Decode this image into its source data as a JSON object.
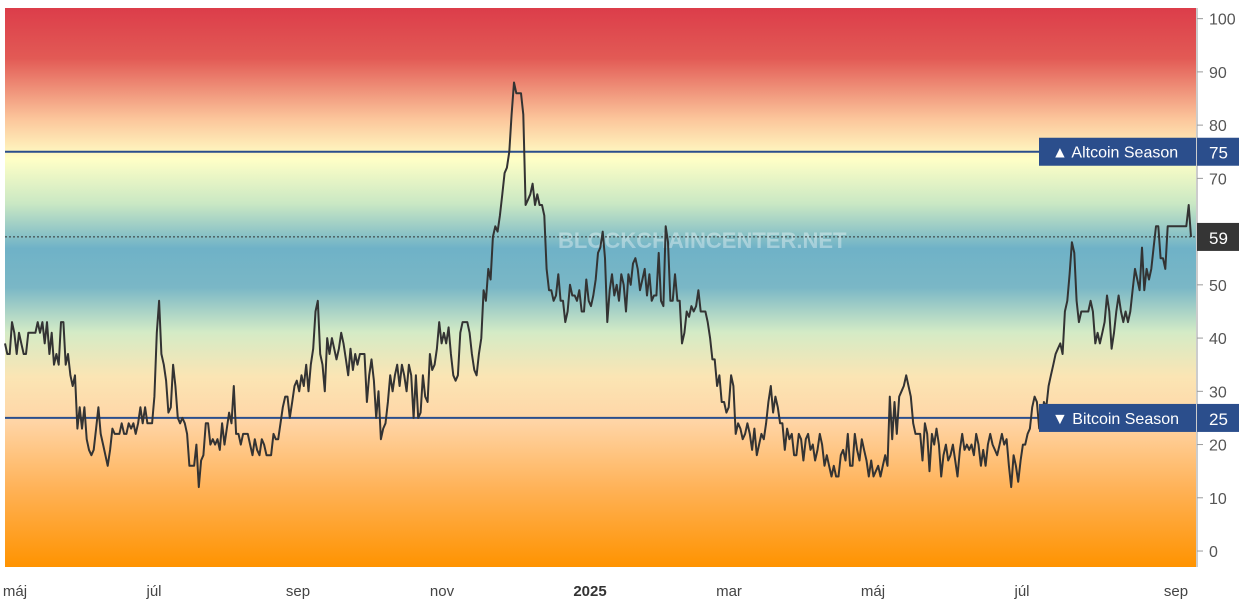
{
  "chart_data": {
    "type": "line",
    "title": "",
    "watermark": "BLOCKCHAINCENTER.NET",
    "ylim": [
      -3,
      102
    ],
    "yticks": [
      0,
      10,
      20,
      30,
      40,
      50,
      60,
      70,
      80,
      90,
      100
    ],
    "grid": false,
    "x_tick_labels": [
      {
        "label": "máj",
        "bold": false
      },
      {
        "label": "júl",
        "bold": false
      },
      {
        "label": "sep",
        "bold": false
      },
      {
        "label": "nov",
        "bold": false
      },
      {
        "label": "2025",
        "bold": true
      },
      {
        "label": "mar",
        "bold": false
      },
      {
        "label": "máj",
        "bold": false
      },
      {
        "label": "júl",
        "bold": false
      },
      {
        "label": "sep",
        "bold": false
      }
    ],
    "reference_lines": [
      {
        "name": "Altcoin Season",
        "value": 75,
        "marker": "▲",
        "color": "#2b4e8c"
      },
      {
        "name": "Bitcoin Season",
        "value": 25,
        "marker": "▼",
        "color": "#2b4e8c"
      }
    ],
    "current_value": 59,
    "series": [
      {
        "color": "#333333",
        "values": [
          39,
          37,
          37,
          43,
          41,
          37,
          41,
          39,
          37,
          37,
          41,
          41,
          41,
          41,
          43,
          41,
          43,
          39,
          43,
          37,
          41,
          35,
          37,
          35,
          43,
          43,
          35,
          37,
          33,
          31,
          33,
          23,
          27,
          23,
          27,
          21,
          19,
          18,
          19,
          23,
          27,
          22,
          20,
          18,
          16,
          19,
          23,
          22,
          22,
          22,
          24,
          22,
          22,
          24,
          23,
          24,
          22,
          24,
          27,
          24,
          27,
          24,
          24,
          24,
          29,
          41,
          47,
          37,
          35,
          32,
          26,
          27,
          35,
          31,
          25,
          24,
          25,
          24,
          22,
          16,
          16,
          16,
          20,
          12,
          17,
          18,
          24,
          24,
          20,
          21,
          20,
          21,
          19,
          24,
          20,
          23,
          26,
          24,
          31,
          22,
          22,
          20,
          22,
          22,
          22,
          20,
          18,
          21,
          19,
          18,
          21,
          20,
          18,
          18,
          18,
          22,
          21,
          21,
          24,
          27,
          29,
          29,
          25,
          28,
          31,
          32,
          30,
          33,
          31,
          35,
          30,
          35,
          38,
          45,
          47,
          37,
          35,
          30,
          40,
          37,
          40,
          38,
          36,
          38,
          41,
          39,
          36,
          33,
          38,
          34,
          37,
          35,
          37,
          37,
          37,
          28,
          33,
          36,
          32,
          25,
          30,
          21,
          23,
          24,
          28,
          33,
          30,
          33,
          35,
          31,
          35,
          33,
          30,
          35,
          33,
          25,
          33,
          25,
          26,
          33,
          29,
          28,
          37,
          34,
          35,
          38,
          43,
          39,
          41,
          39,
          42,
          37,
          33,
          32,
          33,
          41,
          43,
          43,
          43,
          41,
          37,
          34,
          33,
          37,
          40,
          49,
          47,
          53,
          51,
          59,
          61,
          60,
          63,
          67,
          71,
          72,
          75,
          82,
          88,
          86,
          86,
          86,
          82,
          65,
          66,
          67,
          69,
          65,
          67,
          65,
          65,
          63,
          53,
          49,
          49,
          47,
          48,
          52,
          47,
          47,
          43,
          45,
          50,
          48,
          48,
          47,
          49,
          45,
          45,
          51,
          47,
          46,
          48,
          51,
          56,
          57,
          60,
          55,
          43,
          49,
          52,
          48,
          50,
          47,
          52,
          50,
          45,
          52,
          50,
          54,
          55,
          53,
          49,
          51,
          53,
          48,
          52,
          47,
          48,
          48,
          56,
          47,
          46,
          61,
          58,
          47,
          47,
          52,
          47,
          47,
          39,
          41,
          45,
          44,
          46,
          45,
          46,
          49,
          45,
          45,
          45,
          43,
          40,
          36,
          36,
          31,
          33,
          28,
          28,
          26,
          27,
          33,
          31,
          22,
          24,
          23,
          21,
          22,
          24,
          22,
          19,
          23,
          18,
          20,
          22,
          21,
          24,
          28,
          31,
          26,
          29,
          27,
          24,
          24,
          19,
          23,
          21,
          22,
          18,
          18,
          22,
          21,
          17,
          21,
          22,
          19,
          20,
          17,
          19,
          22,
          20,
          16,
          18,
          16,
          14,
          16,
          14,
          14,
          18,
          19,
          17,
          22,
          16,
          16,
          22,
          19,
          17,
          21,
          19,
          17,
          14,
          17,
          14,
          15,
          16,
          14,
          16,
          18,
          16,
          29,
          21,
          28,
          22,
          29,
          30,
          31,
          33,
          31,
          29,
          24,
          22,
          22,
          22,
          17,
          24,
          22,
          15,
          22,
          20,
          23,
          20,
          14,
          18,
          20,
          17,
          18,
          20,
          17,
          14,
          19,
          22,
          19,
          20,
          19,
          20,
          18,
          22,
          20,
          16,
          19,
          16,
          20,
          22,
          20,
          19,
          18,
          20,
          22,
          20,
          21,
          16,
          12,
          18,
          16,
          13,
          17,
          20,
          20,
          22,
          23,
          27,
          29,
          28,
          23,
          23,
          28,
          27,
          31,
          33,
          35,
          37,
          38,
          39,
          37,
          45,
          47,
          52,
          58,
          56,
          47,
          43,
          45,
          45,
          45,
          45,
          47,
          45,
          39,
          41,
          39,
          41,
          43,
          48,
          45,
          38,
          41,
          45,
          48,
          45,
          43,
          45,
          43,
          45,
          49,
          53,
          51,
          49,
          57,
          49,
          53,
          51,
          53,
          57,
          61,
          61,
          55,
          55,
          53,
          61,
          61,
          61,
          61,
          61,
          61,
          61,
          61,
          61,
          65,
          59
        ]
      }
    ]
  }
}
